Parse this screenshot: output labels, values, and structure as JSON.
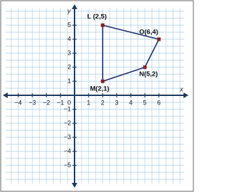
{
  "chart_data": {
    "type": "polygon",
    "x_label": "x",
    "y_label": "y",
    "origin_label": "0",
    "xlim": [
      -4.9,
      7.8
    ],
    "ylim": [
      -6.3,
      6.2
    ],
    "xticks": [
      {
        "value": -4,
        "label": "−4"
      },
      {
        "value": -3,
        "label": "−3"
      },
      {
        "value": -2,
        "label": "−2"
      },
      {
        "value": -1,
        "label": "−1"
      },
      1,
      2,
      3,
      4,
      5,
      6
    ],
    "yticks": [
      {
        "value": -5,
        "label": "−5"
      },
      {
        "value": -4,
        "label": "−4"
      },
      {
        "value": -3,
        "label": "−3"
      },
      {
        "value": -2,
        "label": "−2"
      },
      {
        "value": -1,
        "label": "−1"
      },
      1,
      2,
      3,
      4,
      5
    ],
    "grid": true,
    "grid_step": 0.5,
    "points": {
      "labels": [
        "L (2,5)",
        "O(6,4)",
        "N(5,2)",
        "M(2,1)"
      ],
      "x": [
        2,
        6,
        5,
        2
      ],
      "y": [
        5,
        4,
        2,
        1
      ]
    },
    "point_color": "#8b1a1a",
    "line_color": "#1c2f6e",
    "grid_color": "#a9cde8",
    "axis_color": "#1f3a5f"
  }
}
